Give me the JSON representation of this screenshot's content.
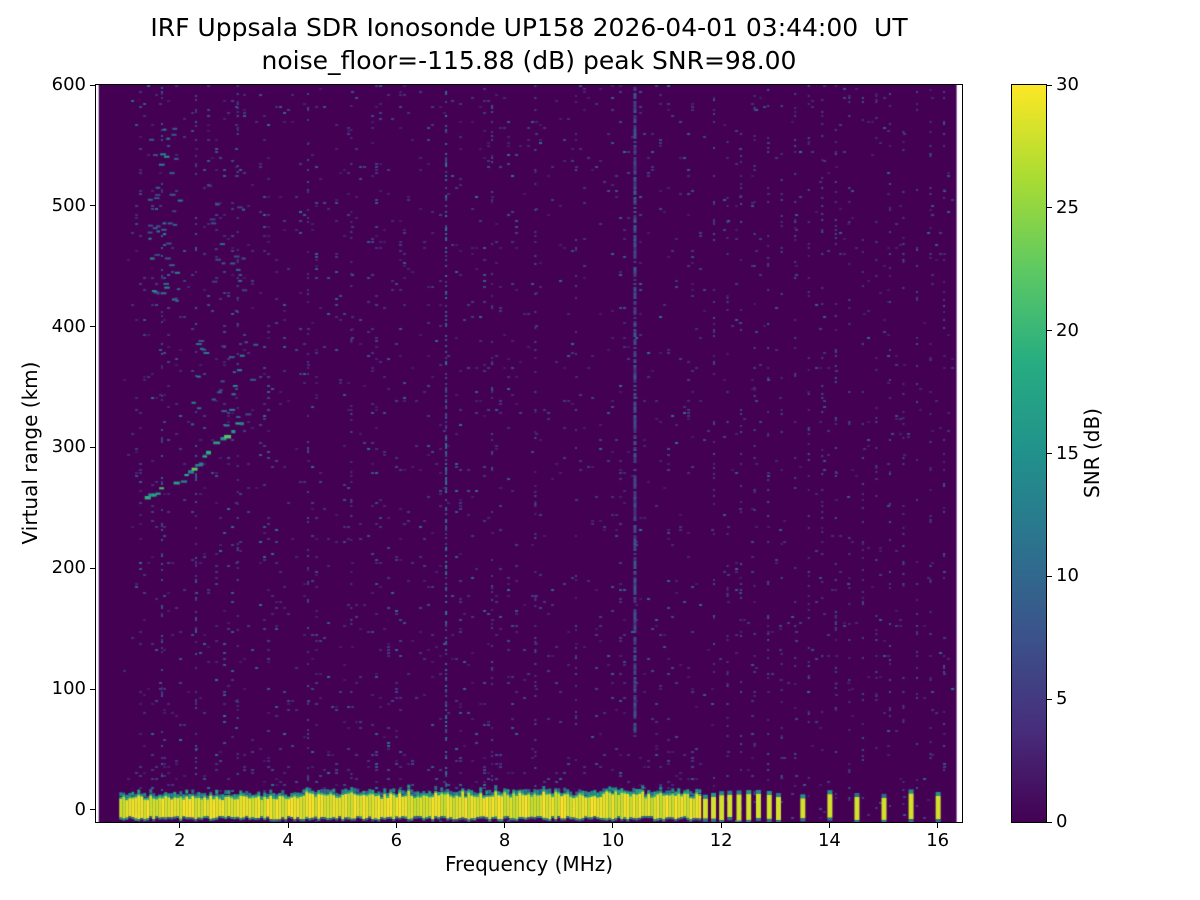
{
  "chart_data": {
    "type": "heatmap",
    "title": "IRF Uppsala SDR Ionosonde UP158 2026-04-01 03:44:00  UT",
    "subtitle": "noise_floor=-115.88 (dB) peak SNR=98.00",
    "xlabel": "Frequency (MHz)",
    "ylabel": "Virtual range (km)",
    "xlim": [
      0.45,
      16.45
    ],
    "ylim": [
      -10,
      600
    ],
    "xticks": [
      2,
      4,
      6,
      8,
      10,
      12,
      14,
      16
    ],
    "yticks": [
      0,
      100,
      200,
      300,
      400,
      500,
      600
    ],
    "mesh_range_mhz": [
      0.5,
      16.35
    ],
    "noise": {
      "data_range_mhz": [
        0.95,
        16.28
      ],
      "background_snr_db": 0,
      "speckle_snr_db": [
        2,
        12
      ]
    },
    "colorbar": {
      "label": "SNR (dB)",
      "min": 0,
      "max": 30,
      "ticks": [
        0,
        5,
        10,
        15,
        20,
        25,
        30
      ],
      "colormap": "viridis",
      "stops": [
        "#440154",
        "#472d7b",
        "#3b528b",
        "#2c728e",
        "#21918c",
        "#27ad81",
        "#5ec962",
        "#aadc32",
        "#fde725"
      ]
    },
    "ground_return": {
      "y_center_km": 0,
      "solid_range_mhz": [
        0.88,
        11.62
      ],
      "pulse_freqs_mhz": [
        11.7,
        11.85,
        12.0,
        12.15,
        12.32,
        12.5,
        12.68,
        12.88,
        13.05,
        13.5,
        14.0,
        14.5,
        15.0,
        15.5,
        16.0
      ],
      "peak_snr_db": 30
    },
    "echo_trace": {
      "snr_db": 20,
      "points": [
        [
          1.35,
          262
        ],
        [
          1.55,
          264
        ],
        [
          1.75,
          267
        ],
        [
          1.95,
          272
        ],
        [
          2.15,
          280
        ],
        [
          2.35,
          290
        ],
        [
          2.55,
          300
        ],
        [
          2.75,
          308
        ],
        [
          2.95,
          316
        ],
        [
          3.1,
          323
        ],
        [
          3.25,
          331
        ]
      ]
    },
    "echo_scatter": [
      {
        "f": [
          2.2,
          3.4
        ],
        "y": [
          315,
          390
        ],
        "n": 28,
        "s": [
          6,
          14
        ]
      },
      {
        "f": [
          1.4,
          2.0
        ],
        "y": [
          420,
          570
        ],
        "n": 45,
        "s": [
          6,
          16
        ]
      },
      {
        "f": [
          2.5,
          3.15
        ],
        "y": [
          430,
          520
        ],
        "n": 18,
        "s": [
          5,
          12
        ]
      }
    ],
    "rfi_lines": [
      {
        "f": 1.65,
        "y": [
          0,
          600
        ],
        "w": 2,
        "d": 0.18,
        "s": [
          3,
          9
        ]
      },
      {
        "f": 2.28,
        "y": [
          0,
          600
        ],
        "w": 2,
        "d": 0.15,
        "s": [
          3,
          9
        ]
      },
      {
        "f": 3.05,
        "y": [
          0,
          600
        ],
        "w": 2,
        "d": 0.15,
        "s": [
          3,
          8
        ]
      },
      {
        "f": 4.35,
        "y": [
          0,
          600
        ],
        "w": 2,
        "d": 0.13,
        "s": [
          3,
          8
        ]
      },
      {
        "f": 5.15,
        "y": [
          0,
          600
        ],
        "w": 2,
        "d": 0.12,
        "s": [
          3,
          8
        ]
      },
      {
        "f": 6.9,
        "y": [
          0,
          600
        ],
        "w": 2,
        "d": 0.45,
        "s": [
          5,
          13
        ]
      },
      {
        "f": 7.75,
        "y": [
          0,
          600
        ],
        "w": 2,
        "d": 0.14,
        "s": [
          3,
          8
        ]
      },
      {
        "f": 8.55,
        "y": [
          0,
          600
        ],
        "w": 2,
        "d": 0.13,
        "s": [
          3,
          8
        ]
      },
      {
        "f": 9.3,
        "y": [
          0,
          600
        ],
        "w": 2,
        "d": 0.12,
        "s": [
          3,
          8
        ]
      },
      {
        "f": 10.38,
        "y": [
          62,
          600
        ],
        "w": 3,
        "d": 0.8,
        "s": [
          4,
          9
        ]
      },
      {
        "f": 11.85,
        "y": [
          0,
          600
        ],
        "w": 2,
        "d": 0.12,
        "s": [
          3,
          8
        ]
      },
      {
        "f": 12.1,
        "y": [
          0,
          600
        ],
        "w": 2,
        "d": 0.1,
        "s": [
          3,
          8
        ]
      },
      {
        "f": 12.35,
        "y": [
          0,
          600
        ],
        "w": 2,
        "d": 0.1,
        "s": [
          3,
          8
        ]
      },
      {
        "f": 12.6,
        "y": [
          0,
          600
        ],
        "w": 2,
        "d": 0.1,
        "s": [
          3,
          8
        ]
      },
      {
        "f": 12.85,
        "y": [
          0,
          600
        ],
        "w": 2,
        "d": 0.12,
        "s": [
          3,
          8
        ]
      },
      {
        "f": 13.1,
        "y": [
          0,
          600
        ],
        "w": 2,
        "d": 0.1,
        "s": [
          3,
          8
        ]
      },
      {
        "f": 13.35,
        "y": [
          0,
          600
        ],
        "w": 2,
        "d": 0.1,
        "s": [
          3,
          8
        ]
      },
      {
        "f": 13.6,
        "y": [
          0,
          600
        ],
        "w": 2,
        "d": 0.1,
        "s": [
          3,
          8
        ]
      },
      {
        "f": 13.85,
        "y": [
          0,
          600
        ],
        "w": 2,
        "d": 0.1,
        "s": [
          3,
          8
        ]
      },
      {
        "f": 14.1,
        "y": [
          0,
          600
        ],
        "w": 2,
        "d": 0.12,
        "s": [
          3,
          8
        ]
      },
      {
        "f": 14.35,
        "y": [
          0,
          600
        ],
        "w": 2,
        "d": 0.1,
        "s": [
          3,
          8
        ]
      },
      {
        "f": 14.6,
        "y": [
          0,
          600
        ],
        "w": 2,
        "d": 0.1,
        "s": [
          3,
          8
        ]
      },
      {
        "f": 14.85,
        "y": [
          0,
          600
        ],
        "w": 2,
        "d": 0.1,
        "s": [
          3,
          8
        ]
      },
      {
        "f": 15.1,
        "y": [
          0,
          600
        ],
        "w": 2,
        "d": 0.1,
        "s": [
          3,
          8
        ]
      },
      {
        "f": 15.35,
        "y": [
          0,
          600
        ],
        "w": 2,
        "d": 0.1,
        "s": [
          3,
          8
        ]
      },
      {
        "f": 15.6,
        "y": [
          0,
          600
        ],
        "w": 2,
        "d": 0.1,
        "s": [
          3,
          8
        ]
      },
      {
        "f": 15.85,
        "y": [
          0,
          600
        ],
        "w": 2,
        "d": 0.1,
        "s": [
          3,
          8
        ]
      },
      {
        "f": 16.1,
        "y": [
          0,
          600
        ],
        "w": 2,
        "d": 0.1,
        "s": [
          3,
          8
        ]
      }
    ]
  }
}
